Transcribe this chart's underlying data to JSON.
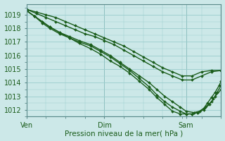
{
  "xlabel": "Pression niveau de la mer( hPa )",
  "xtick_labels": [
    "Ven",
    "Dim",
    "Sam"
  ],
  "xtick_positions": [
    0.0,
    0.4,
    0.82
  ],
  "ylim": [
    1011.5,
    1019.8
  ],
  "yticks": [
    1012,
    1013,
    1014,
    1015,
    1016,
    1017,
    1018,
    1019
  ],
  "xlim": [
    0.0,
    1.0
  ],
  "bg_color": "#cce8e8",
  "grid_color": "#99cccc",
  "line_color": "#1a5c1a",
  "marker": "D",
  "markersize": 2.0,
  "linewidth": 1.0,
  "lines": [
    {
      "x": [
        0.0,
        0.05,
        0.1,
        0.15,
        0.2,
        0.25,
        0.3,
        0.35,
        0.4,
        0.45,
        0.5,
        0.55,
        0.6,
        0.65,
        0.7,
        0.75,
        0.8,
        0.85,
        0.9,
        0.95,
        1.0
      ],
      "y": [
        1019.4,
        1019.2,
        1019.0,
        1018.8,
        1018.5,
        1018.2,
        1017.9,
        1017.6,
        1017.3,
        1017.0,
        1016.7,
        1016.3,
        1015.9,
        1015.5,
        1015.1,
        1014.8,
        1014.5,
        1014.5,
        1014.8,
        1014.9,
        1014.9
      ]
    },
    {
      "x": [
        0.0,
        0.05,
        0.1,
        0.15,
        0.2,
        0.25,
        0.3,
        0.35,
        0.4,
        0.45,
        0.5,
        0.55,
        0.6,
        0.65,
        0.7,
        0.75,
        0.8,
        0.85,
        0.9,
        0.95,
        1.0
      ],
      "y": [
        1019.4,
        1019.1,
        1018.8,
        1018.5,
        1018.2,
        1017.9,
        1017.6,
        1017.4,
        1017.1,
        1016.8,
        1016.4,
        1016.0,
        1015.6,
        1015.2,
        1014.8,
        1014.5,
        1014.2,
        1014.2,
        1014.5,
        1014.8,
        1014.9
      ]
    },
    {
      "x": [
        0.0,
        0.04,
        0.08,
        0.12,
        0.17,
        0.22,
        0.27,
        0.33,
        0.38,
        0.43,
        0.48,
        0.53,
        0.58,
        0.63,
        0.67,
        0.71,
        0.75,
        0.79,
        0.82,
        0.86,
        0.89,
        0.92,
        0.95,
        0.97,
        1.0
      ],
      "y": [
        1019.3,
        1018.9,
        1018.5,
        1018.1,
        1017.7,
        1017.4,
        1017.1,
        1016.8,
        1016.4,
        1016.0,
        1015.5,
        1015.0,
        1014.5,
        1014.0,
        1013.5,
        1013.0,
        1012.6,
        1012.2,
        1011.9,
        1011.8,
        1011.9,
        1012.2,
        1012.6,
        1013.0,
        1013.5
      ]
    },
    {
      "x": [
        0.0,
        0.04,
        0.08,
        0.12,
        0.17,
        0.22,
        0.27,
        0.33,
        0.38,
        0.43,
        0.48,
        0.53,
        0.58,
        0.63,
        0.67,
        0.71,
        0.75,
        0.79,
        0.82,
        0.85,
        0.88,
        0.91,
        0.94,
        0.96,
        0.98,
        1.0
      ],
      "y": [
        1019.3,
        1018.9,
        1018.5,
        1018.1,
        1017.7,
        1017.3,
        1017.0,
        1016.7,
        1016.3,
        1015.9,
        1015.4,
        1014.9,
        1014.3,
        1013.7,
        1013.1,
        1012.6,
        1012.2,
        1011.9,
        1011.7,
        1011.7,
        1011.8,
        1012.0,
        1012.4,
        1012.8,
        1013.3,
        1013.8
      ]
    },
    {
      "x": [
        0.0,
        0.04,
        0.08,
        0.12,
        0.17,
        0.22,
        0.27,
        0.33,
        0.38,
        0.43,
        0.48,
        0.53,
        0.58,
        0.63,
        0.67,
        0.71,
        0.75,
        0.79,
        0.82,
        0.85,
        0.88,
        0.91,
        0.93,
        0.95,
        0.97,
        0.99,
        1.0
      ],
      "y": [
        1019.3,
        1018.9,
        1018.4,
        1018.0,
        1017.6,
        1017.3,
        1016.9,
        1016.5,
        1016.1,
        1015.6,
        1015.2,
        1014.7,
        1014.1,
        1013.5,
        1012.9,
        1012.4,
        1011.9,
        1011.7,
        1011.7,
        1011.7,
        1011.8,
        1012.1,
        1012.5,
        1012.9,
        1013.3,
        1013.8,
        1014.1
      ]
    }
  ]
}
